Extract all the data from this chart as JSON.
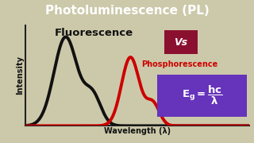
{
  "title": "Photoluminescence (PL)",
  "title_bg": "#0000cc",
  "title_color": "#ffffff",
  "bg_color": "#ccc9aa",
  "fluorescence_label": "Fluorescence",
  "vs_label": "Vs",
  "vs_bg": "#8b1030",
  "phosphorescence_label": "Phosphorescence",
  "phosphorescence_color": "#cc0000",
  "xlabel": "Wavelength (λ)",
  "ylabel": "Intensity",
  "formula_bg": "#6633bb",
  "fluor_color": "#111111",
  "line_width": 2.8,
  "title_fontsize": 11,
  "fluor_fontsize": 9.5,
  "phos_fontsize": 7.0,
  "vs_fontsize": 9,
  "axis_label_fontsize": 7
}
